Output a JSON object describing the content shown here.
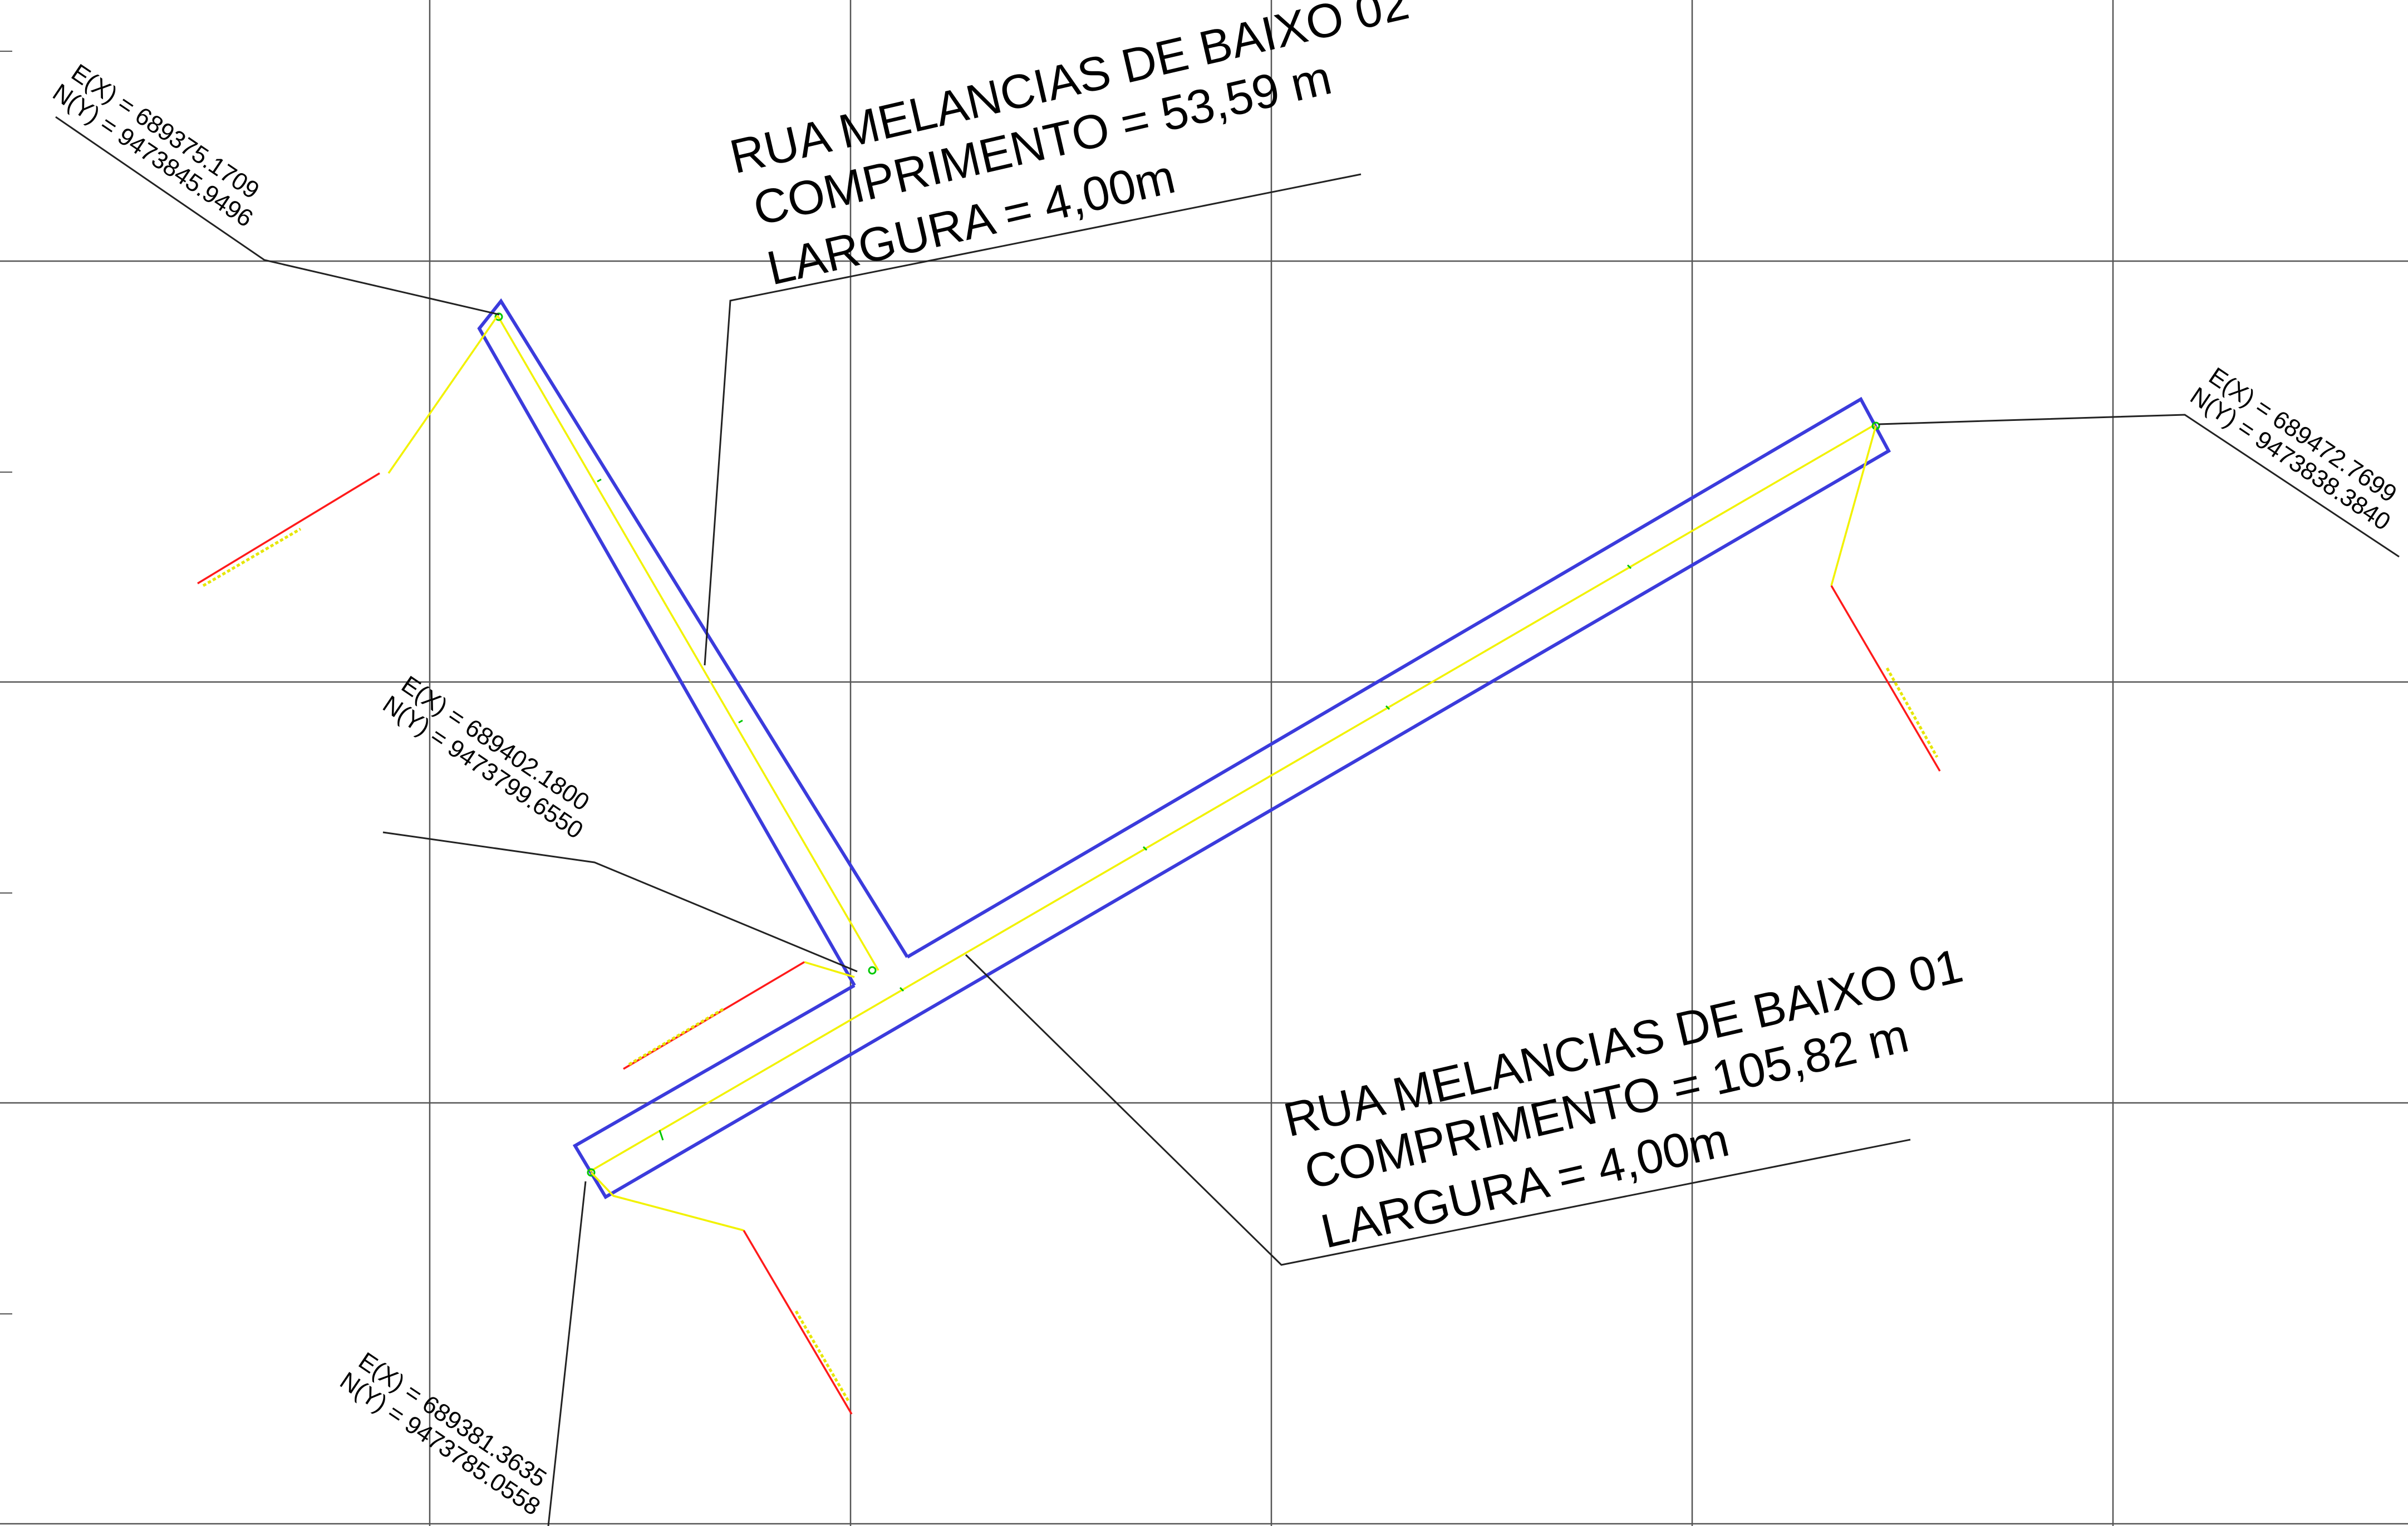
{
  "colors": {
    "grid": "#555555",
    "street_outline": "#3b3bdc",
    "centerline": "#f2f200",
    "station_tick": "#00c800",
    "red_leader": "#ff1a1a",
    "leader_line": "#222222",
    "text": "#000000"
  },
  "street_02": {
    "name": "RUA MELANCIAS DE BAIXO 02",
    "length": "COMPRIMENTO = 53,59 m",
    "width": "LARGURA = 4,00m"
  },
  "street_01": {
    "name": "RUA MELANCIAS DE BAIXO 01",
    "length": "COMPRIMENTO = 105,82 m",
    "width": "LARGURA = 4,00m"
  },
  "coord_top_left": {
    "e": "E(X) = 689375.1709",
    "n": "N(Y) = 9473845.9496"
  },
  "coord_right": {
    "e": "E(X) = 689472.7699",
    "n": "N(Y) = 9473838.3840"
  },
  "coord_middle": {
    "e": "E(X) = 689402.1800",
    "n": "N(Y) = 9473799.6550"
  },
  "coord_bottom": {
    "e": "E(X) = 689381.3635",
    "n": "N(Y) = 9473785.0558"
  }
}
